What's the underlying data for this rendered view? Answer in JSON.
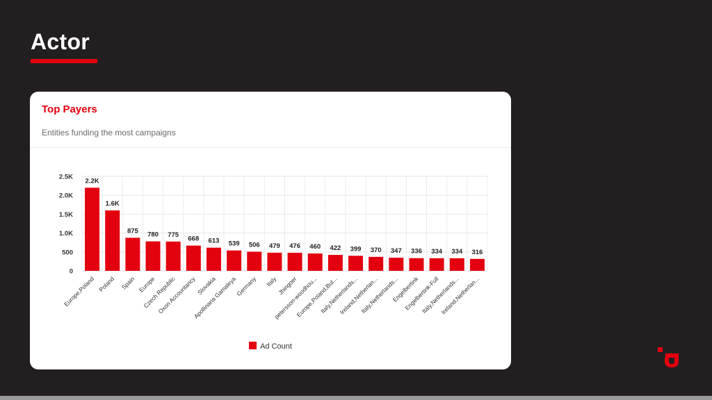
{
  "page": {
    "title": "Actor"
  },
  "card": {
    "title": "Top Payers",
    "subtitle": "Entities funding the most campaigns"
  },
  "colors": {
    "accent": "#e3000f",
    "background": "#231f20"
  },
  "chart_data": {
    "type": "bar",
    "categories": [
      "Europe,Poland",
      "Poland",
      "Spain",
      "Europe",
      "Czech Republic",
      "Oxon Accountancy",
      "Slovakia",
      "Apollinaria Gamaleya",
      "Germany",
      "Italy",
      "Jhingoer",
      "petersson-woodhou...",
      "Europe,Poland,Bul...",
      "Italy,Netherlands...",
      "Ireland,Netherlan...",
      "Italy,Netherlands...",
      "Engelbertink",
      "Engelbertink-Full",
      "Italy,Netherlands...",
      "Ireland,Netherlan..."
    ],
    "series": [
      {
        "name": "Ad Count",
        "values": [
          2200,
          1600,
          875,
          780,
          775,
          668,
          613,
          539,
          506,
          479,
          476,
          460,
          422,
          399,
          370,
          347,
          336,
          334,
          334,
          316
        ],
        "labels": [
          "2.2K",
          "1.6K",
          "875",
          "780",
          "775",
          "668",
          "613",
          "539",
          "506",
          "479",
          "476",
          "460",
          "422",
          "399",
          "370",
          "347",
          "336",
          "334",
          "334",
          "316"
        ]
      }
    ],
    "y_ticks": [
      {
        "value": 0,
        "label": "0"
      },
      {
        "value": 500,
        "label": "500"
      },
      {
        "value": 1000,
        "label": "1.0K"
      },
      {
        "value": 1500,
        "label": "1.5K"
      },
      {
        "value": 2000,
        "label": "2.0K"
      },
      {
        "value": 2500,
        "label": "2.5K"
      }
    ],
    "ylim": [
      0,
      2500
    ],
    "grid": true,
    "legend_position": "bottom"
  }
}
